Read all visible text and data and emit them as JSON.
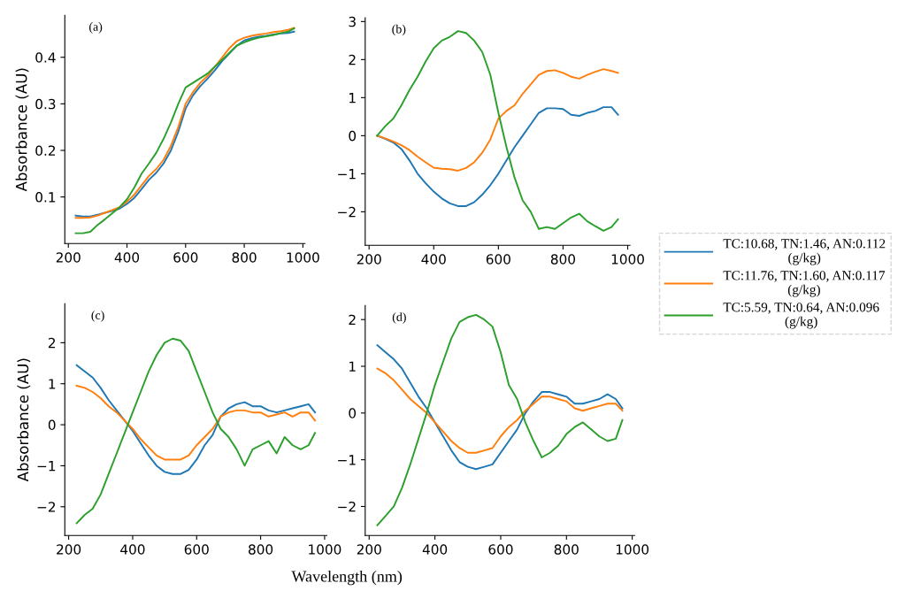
{
  "chart_data": [
    {
      "type": "line",
      "annotations": [
        "(a)"
      ],
      "ylabel": "Absorbance (AU)",
      "legend": "right",
      "xlim": [
        188,
        1007
      ],
      "xticks": [
        200,
        400,
        600,
        800,
        1000
      ],
      "ylim": [
        0.0,
        0.49
      ],
      "yticks": [
        0.1,
        0.2,
        0.3,
        0.4
      ],
      "x": [
        225,
        250,
        275,
        300,
        325,
        350,
        375,
        400,
        425,
        450,
        475,
        500,
        525,
        550,
        575,
        600,
        625,
        650,
        675,
        700,
        725,
        750,
        775,
        800,
        825,
        850,
        875,
        900,
        925,
        950,
        970
      ],
      "series": [
        {
          "name": "TC:10.68, TN:1.46, AN:0.112\n(g/kg)",
          "color": "#1f77b4",
          "values": [
            0.06,
            0.058,
            0.058,
            0.062,
            0.066,
            0.07,
            0.075,
            0.085,
            0.098,
            0.117,
            0.137,
            0.152,
            0.172,
            0.2,
            0.24,
            0.29,
            0.318,
            0.338,
            0.354,
            0.372,
            0.392,
            0.409,
            0.425,
            0.436,
            0.441,
            0.444,
            0.446,
            0.449,
            0.451,
            0.452,
            0.455
          ]
        },
        {
          "name": "TC:11.76, TN:1.60, AN:0.117\n(g/kg)",
          "color": "#ff7f0e",
          "values": [
            0.055,
            0.055,
            0.056,
            0.06,
            0.066,
            0.072,
            0.078,
            0.09,
            0.105,
            0.125,
            0.145,
            0.16,
            0.18,
            0.21,
            0.25,
            0.3,
            0.325,
            0.345,
            0.36,
            0.38,
            0.4,
            0.42,
            0.435,
            0.442,
            0.446,
            0.449,
            0.451,
            0.454,
            0.456,
            0.459,
            0.463
          ]
        },
        {
          "name": "TC:5.59, TN:0.64, AN:0.096\n(g/kg)",
          "color": "#2ca02c",
          "values": [
            0.022,
            0.022,
            0.025,
            0.04,
            0.052,
            0.065,
            0.078,
            0.095,
            0.12,
            0.15,
            0.172,
            0.195,
            0.225,
            0.26,
            0.3,
            0.335,
            0.345,
            0.355,
            0.365,
            0.38,
            0.395,
            0.41,
            0.425,
            0.432,
            0.438,
            0.442,
            0.445,
            0.448,
            0.452,
            0.455,
            0.462
          ]
        }
      ]
    },
    {
      "type": "line",
      "annotations": [
        "(b)"
      ],
      "xlim": [
        188,
        1007
      ],
      "xticks": [
        200,
        400,
        600,
        800,
        1000
      ],
      "ylim": [
        -2.88,
        3.1
      ],
      "yticks": [
        -2,
        -1,
        0,
        1,
        2,
        3
      ],
      "x": [
        225,
        250,
        275,
        300,
        325,
        350,
        375,
        400,
        425,
        450,
        475,
        500,
        525,
        550,
        575,
        600,
        625,
        650,
        675,
        700,
        725,
        750,
        775,
        800,
        825,
        850,
        875,
        900,
        925,
        950,
        970
      ],
      "series": [
        {
          "color": "#1f77b4",
          "values": [
            0,
            -0.08,
            -0.18,
            -0.35,
            -0.65,
            -1.0,
            -1.25,
            -1.47,
            -1.65,
            -1.78,
            -1.85,
            -1.85,
            -1.75,
            -1.55,
            -1.3,
            -1.0,
            -0.65,
            -0.3,
            0.0,
            0.3,
            0.6,
            0.72,
            0.72,
            0.7,
            0.55,
            0.52,
            0.6,
            0.65,
            0.75,
            0.75,
            0.55
          ]
        },
        {
          "color": "#ff7f0e",
          "values": [
            0,
            -0.07,
            -0.15,
            -0.25,
            -0.38,
            -0.55,
            -0.7,
            -0.84,
            -0.87,
            -0.88,
            -0.92,
            -0.85,
            -0.7,
            -0.45,
            -0.1,
            0.45,
            0.65,
            0.8,
            1.1,
            1.35,
            1.6,
            1.7,
            1.72,
            1.65,
            1.55,
            1.5,
            1.6,
            1.68,
            1.75,
            1.7,
            1.65
          ]
        },
        {
          "color": "#2ca02c",
          "values": [
            0,
            0.25,
            0.45,
            0.8,
            1.2,
            1.55,
            1.95,
            2.3,
            2.5,
            2.6,
            2.75,
            2.7,
            2.5,
            2.2,
            1.6,
            0.6,
            -0.3,
            -1.1,
            -1.7,
            -2.0,
            -2.45,
            -2.4,
            -2.45,
            -2.3,
            -2.15,
            -2.05,
            -2.25,
            -2.38,
            -2.5,
            -2.4,
            -2.2
          ]
        }
      ]
    },
    {
      "type": "line",
      "annotations": [
        "(c)"
      ],
      "ylabel": "Absorbance (AU)",
      "xlabel": "Wavelength (nm)",
      "xlim": [
        188,
        1007
      ],
      "xticks": [
        200,
        400,
        600,
        800,
        1000
      ],
      "ylim": [
        -2.7,
        2.95
      ],
      "yticks": [
        -2,
        -1,
        0,
        1,
        2
      ],
      "x": [
        225,
        250,
        275,
        300,
        325,
        350,
        375,
        400,
        425,
        450,
        475,
        500,
        525,
        550,
        575,
        600,
        625,
        650,
        675,
        700,
        725,
        750,
        775,
        800,
        825,
        850,
        875,
        900,
        925,
        950,
        970
      ],
      "series": [
        {
          "color": "#1f77b4",
          "values": [
            1.45,
            1.3,
            1.15,
            0.9,
            0.6,
            0.35,
            0.1,
            -0.15,
            -0.45,
            -0.75,
            -1.0,
            -1.15,
            -1.2,
            -1.2,
            -1.1,
            -0.85,
            -0.5,
            -0.25,
            0.2,
            0.4,
            0.5,
            0.55,
            0.45,
            0.45,
            0.35,
            0.3,
            0.35,
            0.4,
            0.45,
            0.5,
            0.3
          ]
        },
        {
          "color": "#ff7f0e",
          "values": [
            0.95,
            0.9,
            0.8,
            0.65,
            0.45,
            0.3,
            0.1,
            -0.1,
            -0.35,
            -0.55,
            -0.75,
            -0.85,
            -0.85,
            -0.85,
            -0.75,
            -0.5,
            -0.3,
            -0.1,
            0.2,
            0.3,
            0.35,
            0.35,
            0.3,
            0.3,
            0.2,
            0.25,
            0.3,
            0.2,
            0.3,
            0.3,
            0.1
          ]
        },
        {
          "color": "#2ca02c",
          "values": [
            -2.4,
            -2.2,
            -2.05,
            -1.7,
            -1.2,
            -0.7,
            -0.2,
            0.3,
            0.8,
            1.3,
            1.7,
            2.0,
            2.1,
            2.05,
            1.8,
            1.3,
            0.8,
            0.3,
            -0.1,
            -0.3,
            -0.6,
            -1.0,
            -0.6,
            -0.5,
            -0.4,
            -0.7,
            -0.3,
            -0.5,
            -0.6,
            -0.5,
            -0.2
          ]
        }
      ]
    },
    {
      "type": "line",
      "annotations": [
        "(d)"
      ],
      "xlim": [
        188,
        1007
      ],
      "xticks": [
        200,
        400,
        600,
        800,
        1000
      ],
      "ylim": [
        -2.62,
        2.3
      ],
      "yticks": [
        -2,
        -1,
        0,
        1,
        2
      ],
      "x": [
        225,
        250,
        275,
        300,
        325,
        350,
        375,
        400,
        425,
        450,
        475,
        500,
        525,
        550,
        575,
        600,
        625,
        650,
        675,
        700,
        725,
        750,
        775,
        800,
        825,
        850,
        875,
        900,
        925,
        950,
        970
      ],
      "series": [
        {
          "color": "#1f77b4",
          "values": [
            1.45,
            1.3,
            1.15,
            0.95,
            0.65,
            0.35,
            0.1,
            -0.2,
            -0.5,
            -0.8,
            -1.05,
            -1.15,
            -1.2,
            -1.15,
            -1.1,
            -0.85,
            -0.6,
            -0.35,
            0.0,
            0.25,
            0.45,
            0.45,
            0.4,
            0.35,
            0.2,
            0.2,
            0.25,
            0.3,
            0.4,
            0.3,
            0.1
          ]
        },
        {
          "color": "#ff7f0e",
          "values": [
            0.95,
            0.85,
            0.7,
            0.5,
            0.3,
            0.15,
            0.0,
            -0.2,
            -0.4,
            -0.6,
            -0.75,
            -0.85,
            -0.85,
            -0.8,
            -0.75,
            -0.5,
            -0.3,
            -0.15,
            0.05,
            0.2,
            0.35,
            0.35,
            0.3,
            0.25,
            0.1,
            0.05,
            0.1,
            0.15,
            0.2,
            0.2,
            0.05
          ]
        },
        {
          "color": "#2ca02c",
          "values": [
            -2.4,
            -2.2,
            -2.0,
            -1.6,
            -1.1,
            -0.55,
            0.0,
            0.6,
            1.1,
            1.6,
            1.95,
            2.05,
            2.1,
            2.0,
            1.85,
            1.3,
            0.6,
            0.3,
            -0.2,
            -0.6,
            -0.95,
            -0.85,
            -0.7,
            -0.45,
            -0.3,
            -0.2,
            -0.35,
            -0.5,
            -0.6,
            -0.55,
            -0.15
          ]
        }
      ]
    }
  ]
}
